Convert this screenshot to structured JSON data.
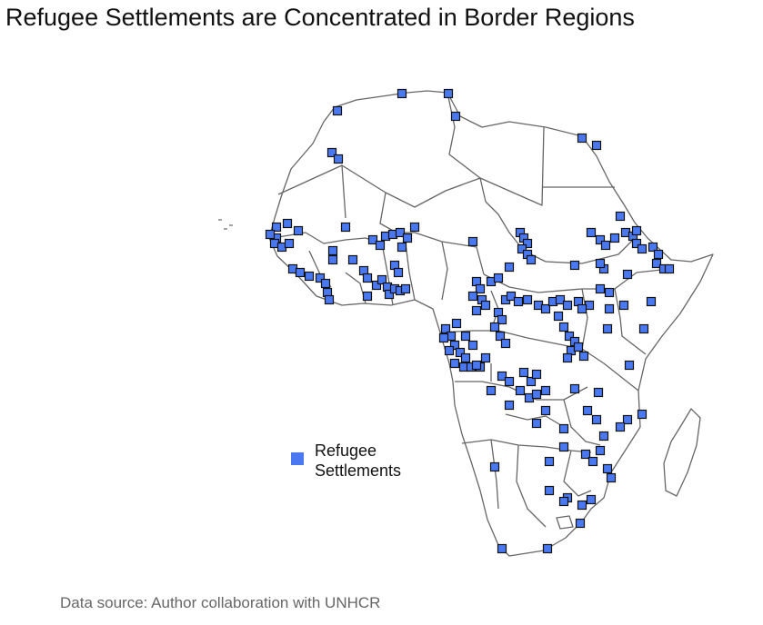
{
  "title": "Refugee Settlements are Concentrated in Border Regions",
  "legend": {
    "label": "Refugee Settlements",
    "color": "#4a78f0"
  },
  "caption": "Data source: Author collaboration with UNHCR",
  "colors": {
    "marker_fill": "#4a78f0",
    "marker_stroke": "#111111",
    "border": "#666666",
    "land": "#ffffff"
  }
}
